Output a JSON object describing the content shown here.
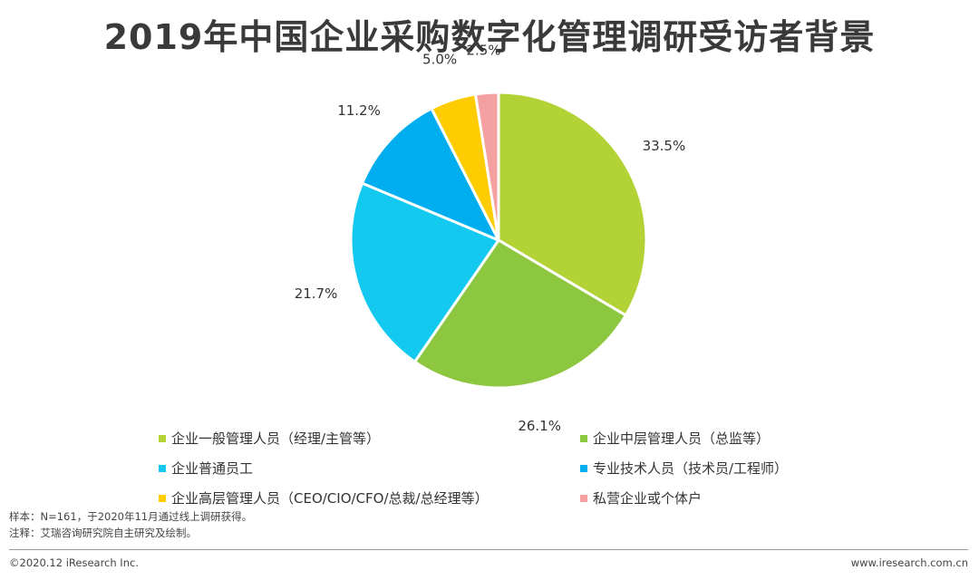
{
  "title": "2019年中国企业采购数字化管理调研受访者背景",
  "chart_data": {
    "type": "pie",
    "start_angle": "12 o'clock",
    "direction": "clockwise",
    "categories": [
      "企业一般管理人员（经理/主管等）",
      "企业中层管理人员（总监等）",
      "企业普通员工",
      "专业技术人员（技术员/工程师）",
      "企业高层管理人员（CEO/CIO/CFO/总裁/总经理等）",
      "私营企业或个体户"
    ],
    "values": [
      33.5,
      26.1,
      21.7,
      11.2,
      5.0,
      2.5
    ],
    "labels": [
      "33.5%",
      "26.1%",
      "21.7%",
      "11.2%",
      "5.0%",
      "2.5%"
    ],
    "colors": [
      "#b2d235",
      "#8dc63f",
      "#14c9f0",
      "#00aeef",
      "#ffcc00",
      "#f4a0a0"
    ],
    "legend_position": "bottom"
  },
  "legend": [
    {
      "label": "企业一般管理人员（经理/主管等）",
      "color": "#b2d235"
    },
    {
      "label": "企业中层管理人员（总监等）",
      "color": "#8dc63f"
    },
    {
      "label": "企业普通员工",
      "color": "#14c9f0"
    },
    {
      "label": "专业技术人员（技术员/工程师）",
      "color": "#00aeef"
    },
    {
      "label": "企业高层管理人员（CEO/CIO/CFO/总裁/总经理等）",
      "color": "#ffcc00"
    },
    {
      "label": "私营企业或个体户",
      "color": "#f4a0a0"
    }
  ],
  "notes": {
    "sample": "样本：N=161，于2020年11月通过线上调研获得。",
    "source": "注释：艾瑞咨询研究院自主研究及绘制。"
  },
  "footer": {
    "copyright": "©2020.12 iResearch Inc.",
    "website": "www.iresearch.com.cn"
  }
}
